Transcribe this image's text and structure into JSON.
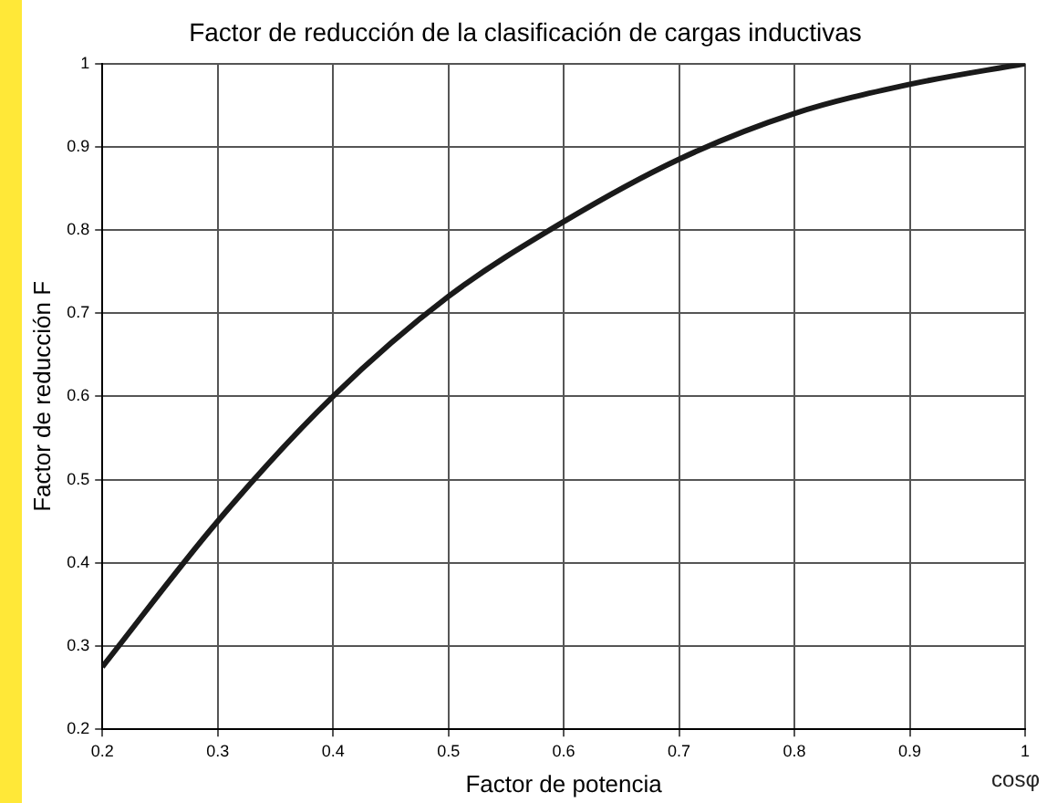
{
  "chart_data": {
    "type": "line",
    "title": "Factor de reducción de la clasificación de cargas inductivas",
    "xlabel": "Factor de potencia",
    "ylabel": "Factor de reducción F",
    "annotations": [
      "cosφ"
    ],
    "x": [
      0.2,
      0.3,
      0.4,
      0.5,
      0.6,
      0.7,
      0.8,
      0.9,
      1
    ],
    "series": [
      {
        "color": "#1a1a1a",
        "values": [
          0.275,
          0.45,
          0.6,
          0.72,
          0.81,
          0.885,
          0.94,
          0.975,
          1
        ]
      }
    ],
    "xlim": [
      0.2,
      1
    ],
    "xticks": [
      0.2,
      0.3,
      0.4,
      0.5,
      0.6,
      0.7,
      0.8,
      0.9,
      1
    ],
    "ylim": [
      0.2,
      1
    ],
    "yticks": [
      0.2,
      0.3,
      0.4,
      0.5,
      0.6,
      0.7,
      0.8,
      0.9,
      1
    ],
    "grid": true,
    "legend": false,
    "marker": "none",
    "line_style": "solid"
  }
}
